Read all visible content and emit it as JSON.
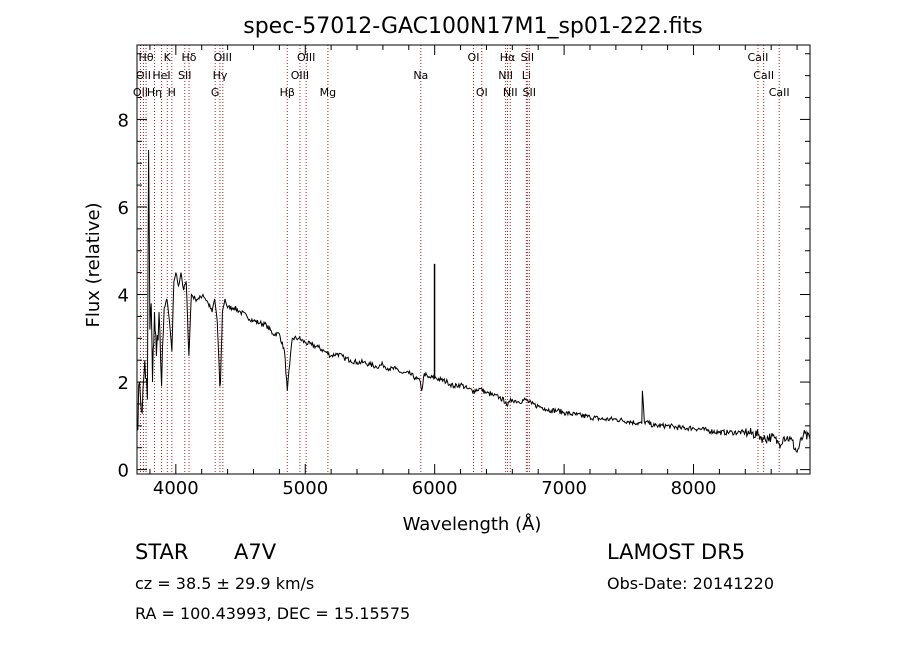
{
  "chart_data": {
    "type": "line",
    "title": "spec-57012-GAC100N17M1_sp01-222.fits",
    "xlabel": "Wavelength (Å)",
    "ylabel": "Flux (relative)",
    "xlim": [
      3700,
      8900
    ],
    "ylim": [
      -0.1,
      9.7
    ],
    "xticks": [
      4000,
      5000,
      6000,
      7000,
      8000
    ],
    "yticks": [
      0,
      2,
      4,
      6,
      8
    ],
    "line_color": "#000000",
    "marker_color": "#b22222",
    "series": [
      {
        "x": [
          3700,
          3720,
          3740,
          3760,
          3780,
          3790,
          3800,
          3810,
          3820,
          3835,
          3850,
          3870,
          3890,
          3910,
          3930,
          3950,
          3970,
          3985,
          4000,
          4020,
          4040,
          4060,
          4080,
          4101,
          4120,
          4150,
          4180,
          4210,
          4250,
          4280,
          4300,
          4320,
          4340,
          4345,
          4360,
          4380,
          4400,
          4450,
          4500,
          4550,
          4600,
          4650,
          4700,
          4750,
          4800,
          4840,
          4861,
          4880,
          4900,
          4950,
          5000,
          5050,
          5100,
          5150,
          5200,
          5250,
          5300,
          5350,
          5400,
          5450,
          5500,
          5550,
          5600,
          5650,
          5700,
          5750,
          5800,
          5850,
          5890,
          5900,
          5920,
          5950,
          6000,
          6050,
          6100,
          6150,
          6200,
          6250,
          6300,
          6350,
          6400,
          6450,
          6500,
          6550,
          6563,
          6580,
          6600,
          6650,
          6700,
          6750,
          6800,
          6850,
          6900,
          6950,
          7000,
          7100,
          7200,
          7300,
          7400,
          7500,
          7600,
          7605,
          7620,
          7700,
          7800,
          7900,
          8000,
          8100,
          8200,
          8300,
          8400,
          8500,
          8542,
          8600,
          8662,
          8700,
          8750,
          8800,
          8850,
          8900
        ],
        "y": [
          0.9,
          2.0,
          1.3,
          2.5,
          1.6,
          7.3,
          3.2,
          3.8,
          2.0,
          3.6,
          2.6,
          3.6,
          1.9,
          3.7,
          3.9,
          3.4,
          2.7,
          4.3,
          4.5,
          4.2,
          4.5,
          4.1,
          4.3,
          2.6,
          4.0,
          3.9,
          3.9,
          4.0,
          3.8,
          3.6,
          3.9,
          3.4,
          1.9,
          2.0,
          3.6,
          3.9,
          3.7,
          3.7,
          3.6,
          3.5,
          3.4,
          3.35,
          3.3,
          3.1,
          3.1,
          2.7,
          1.8,
          2.4,
          3.0,
          3.0,
          2.9,
          2.85,
          2.8,
          2.7,
          2.6,
          2.65,
          2.55,
          2.5,
          2.45,
          2.45,
          2.4,
          2.35,
          2.4,
          2.3,
          2.3,
          2.2,
          2.2,
          2.1,
          2.0,
          1.8,
          2.2,
          2.1,
          2.1,
          2.05,
          2.0,
          1.9,
          1.95,
          1.85,
          1.8,
          1.85,
          1.75,
          1.7,
          1.65,
          1.55,
          1.45,
          1.55,
          1.6,
          1.55,
          1.6,
          1.5,
          1.45,
          1.4,
          1.35,
          1.35,
          1.3,
          1.25,
          1.2,
          1.15,
          1.15,
          1.1,
          1.05,
          1.8,
          1.1,
          1.0,
          1.0,
          0.95,
          0.95,
          0.9,
          0.85,
          0.85,
          0.85,
          0.8,
          0.7,
          0.75,
          0.6,
          0.75,
          0.7,
          0.4,
          0.8,
          0.7
        ]
      }
    ],
    "emission_spikes": [
      {
        "x": 5999,
        "y": 4.7
      }
    ],
    "line_markers": [
      {
        "x": 3727,
        "label": "OII",
        "row": 3
      },
      {
        "x": 3750,
        "label": "OII",
        "row": 2
      },
      {
        "x": 3770,
        "label": "Hθ",
        "row": 1
      },
      {
        "x": 3835,
        "label": "Hη",
        "row": 3
      },
      {
        "x": 3889,
        "label": "HeI",
        "row": 2
      },
      {
        "x": 3934,
        "label": "K",
        "row": 1
      },
      {
        "x": 3969,
        "label": "H",
        "row": 3
      },
      {
        "x": 4069,
        "label": "SII",
        "row": 2
      },
      {
        "x": 4102,
        "label": "Hδ",
        "row": 1
      },
      {
        "x": 4304,
        "label": "G",
        "row": 3
      },
      {
        "x": 4341,
        "label": "Hγ",
        "row": 2
      },
      {
        "x": 4363,
        "label": "OIII",
        "row": 1
      },
      {
        "x": 4861,
        "label": "Hβ",
        "row": 3
      },
      {
        "x": 4959,
        "label": "OIII",
        "row": 2
      },
      {
        "x": 5007,
        "label": "OIII",
        "row": 1
      },
      {
        "x": 5175,
        "label": "Mg",
        "row": 3
      },
      {
        "x": 5893,
        "label": "Na",
        "row": 2
      },
      {
        "x": 6300,
        "label": "OI",
        "row": 1
      },
      {
        "x": 6364,
        "label": "OI",
        "row": 3
      },
      {
        "x": 6548,
        "label": "NII",
        "row": 2
      },
      {
        "x": 6563,
        "label": "Hα",
        "row": 1
      },
      {
        "x": 6584,
        "label": "NII",
        "row": 3
      },
      {
        "x": 6708,
        "label": "Li",
        "row": 2
      },
      {
        "x": 6716,
        "label": "SII",
        "row": 1
      },
      {
        "x": 6731,
        "label": "SII",
        "row": 3
      },
      {
        "x": 8498,
        "label": "CaII",
        "row": 1
      },
      {
        "x": 8542,
        "label": "CaII",
        "row": 2
      },
      {
        "x": 8662,
        "label": "CaII",
        "row": 3
      }
    ]
  },
  "info": {
    "type_label": "STAR",
    "subclass": "A7V",
    "survey": "LAMOST DR5",
    "velocity": "cz = 38.5 ± 29.9 km/s",
    "obs_date": "Obs-Date: 20141220",
    "coords": "RA = 100.43993, DEC =  15.15575"
  }
}
